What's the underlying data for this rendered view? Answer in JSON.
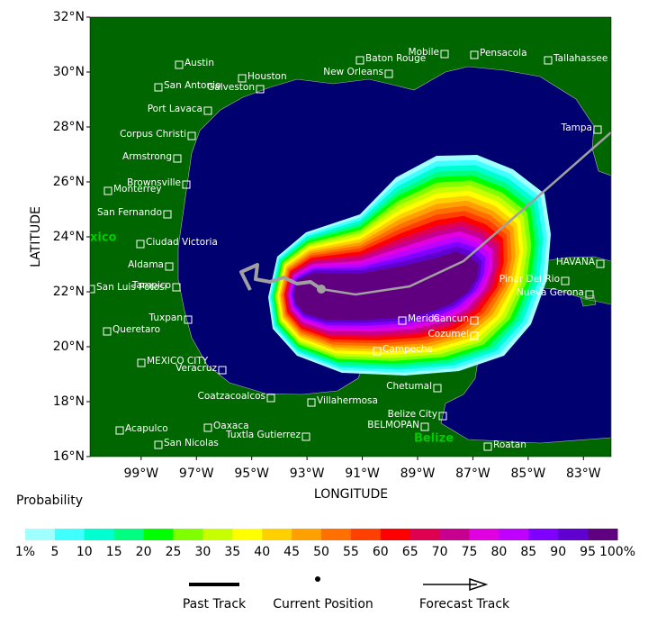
{
  "map": {
    "xaxis_label": "LONGITUDE",
    "yaxis_label": "LATITUDE",
    "xlim": [
      -100.85,
      -82.0
    ],
    "ylim": [
      16,
      32
    ],
    "xticks": [
      {
        "value": -99,
        "label": "99°W"
      },
      {
        "value": -97,
        "label": "97°W"
      },
      {
        "value": -95,
        "label": "95°W"
      },
      {
        "value": -93,
        "label": "93°W"
      },
      {
        "value": -91,
        "label": "91°W"
      },
      {
        "value": -89,
        "label": "89°W"
      },
      {
        "value": -87,
        "label": "87°W"
      },
      {
        "value": -85,
        "label": "85°W"
      },
      {
        "value": -83,
        "label": "83°W"
      }
    ],
    "yticks": [
      {
        "value": 16,
        "label": "16°N"
      },
      {
        "value": 18,
        "label": "18°N"
      },
      {
        "value": 20,
        "label": "20°N"
      },
      {
        "value": 22,
        "label": "22°N"
      },
      {
        "value": 24,
        "label": "24°N"
      },
      {
        "value": 26,
        "label": "26°N"
      },
      {
        "value": 28,
        "label": "28°N"
      },
      {
        "value": 30,
        "label": "30°N"
      },
      {
        "value": 32,
        "label": "32°N"
      }
    ],
    "cities": [
      "Austin",
      "San Antonio",
      "Houston",
      "Galveston",
      "Port Lavaca",
      "Corpus Christi",
      "Armstrong",
      "Brownsville",
      "Monterrey",
      "San Fernando",
      "Ciudad Victoria",
      "Aldama",
      "Tampico",
      "San Luis Potosi",
      "Tuxpan",
      "Queretaro",
      "MEXICO CITY",
      "Veracruz",
      "Coatzacoalcos",
      "Villahermosa",
      "Oaxaca",
      "Tuxtla Gutierrez",
      "Acapulco",
      "San Nicolas",
      "Mobile",
      "Baton Rouge",
      "New Orleans",
      "Pensacola",
      "Tallahassee",
      "Tampa",
      "HAVANA",
      "Pinar Del Rio",
      "Nueva Gerona",
      "Merida",
      "Cancun",
      "Cozumel",
      "Campeche",
      "Chetumal",
      "Belize City",
      "BELMOPAN",
      "Roatan"
    ],
    "countries": [
      "xico",
      "Belize"
    ]
  },
  "legend": {
    "title": "Probability",
    "labels": [
      "1%",
      "5",
      "10",
      "15",
      "20",
      "25",
      "30",
      "35",
      "40",
      "45",
      "50",
      "55",
      "60",
      "65",
      "70",
      "75",
      "80",
      "85",
      "90",
      "95",
      "100%"
    ],
    "colors": [
      "#a0ffff",
      "#40ffff",
      "#00ffd0",
      "#00ff80",
      "#00ff00",
      "#80ff00",
      "#c8ff00",
      "#ffff00",
      "#ffd000",
      "#ffa000",
      "#ff7000",
      "#ff4000",
      "#ff0000",
      "#e00050",
      "#c80090",
      "#e000e0",
      "#c000ff",
      "#8000ff",
      "#6000d0",
      "#600080"
    ]
  },
  "track_legend": [
    "Past Track",
    "Current Position",
    "Forecast Track"
  ]
}
